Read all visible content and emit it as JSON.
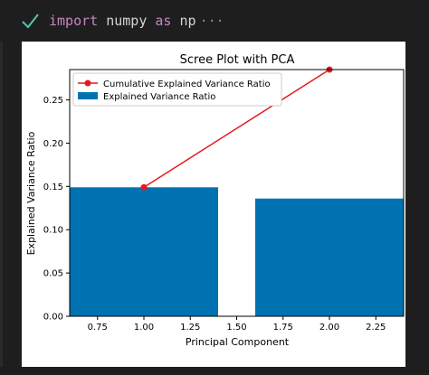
{
  "cell": {
    "status_icon": "check-icon",
    "code_keyword_1": "import",
    "code_module": " numpy ",
    "code_keyword_2": "as",
    "code_alias": " np",
    "code_more": "···",
    "colors": {
      "check": "#4ec9b0",
      "keyword": "#c586c0",
      "text": "#d4d4d4"
    }
  },
  "chart_data": {
    "type": "bar",
    "title": "Scree Plot with PCA",
    "xlabel": "Principal Component",
    "ylabel": "Explained Variance Ratio",
    "xlim": [
      0.6,
      2.4
    ],
    "ylim": [
      0,
      0.285
    ],
    "xticks": [
      "0.75",
      "1.00",
      "1.25",
      "1.50",
      "1.75",
      "2.00",
      "2.25"
    ],
    "yticks": [
      "0.00",
      "0.05",
      "0.10",
      "0.15",
      "0.20",
      "0.25"
    ],
    "legend_position": "upper-left",
    "series": [
      {
        "name": "Explained Variance Ratio",
        "kind": "bar",
        "x": [
          1,
          2
        ],
        "values": [
          0.149,
          0.136
        ],
        "width": 0.8,
        "color": "#0072b2"
      },
      {
        "name": "Cumulative Explained Variance Ratio",
        "kind": "line",
        "x": [
          1,
          2
        ],
        "values": [
          0.149,
          0.285
        ],
        "color": "#e41a1c",
        "marker": "circle"
      }
    ]
  }
}
